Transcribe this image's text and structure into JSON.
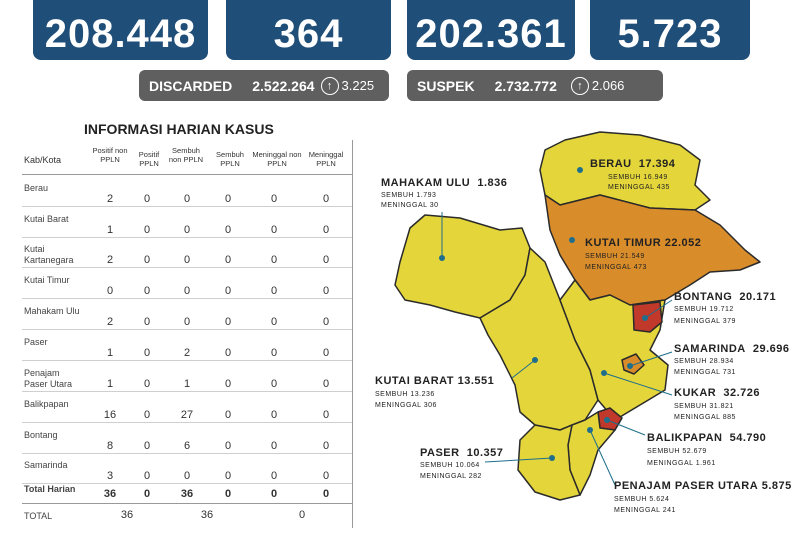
{
  "top_stats": [
    "208.448",
    "364",
    "202.361",
    "5.723"
  ],
  "discarded": {
    "label": "DISCARDED",
    "value": "2.522.264",
    "delta": "3.225"
  },
  "suspek": {
    "label": "SUSPEK",
    "value": "2.732.772",
    "delta": "2.066"
  },
  "table": {
    "title": "INFORMASI HARIAN KASUS",
    "col0": "Kab/Kota",
    "headers": [
      "Positif non PPLN",
      "Positif PPLN",
      "Sembuh non PPLN",
      "Sembuh PPLN",
      "Meninggal non PPLN",
      "Meninggal PPLN"
    ],
    "rows": [
      {
        "name": "Berau",
        "vals": [
          "2",
          "0",
          "0",
          "0",
          "0",
          "0"
        ]
      },
      {
        "name": "Kutai Barat",
        "vals": [
          "1",
          "0",
          "0",
          "0",
          "0",
          "0"
        ]
      },
      {
        "name": "Kutai Kartanegara",
        "vals": [
          "2",
          "0",
          "0",
          "0",
          "0",
          "0"
        ]
      },
      {
        "name": "Kutai Timur",
        "vals": [
          "0",
          "0",
          "0",
          "0",
          "0",
          "0"
        ]
      },
      {
        "name": "Mahakam Ulu",
        "vals": [
          "2",
          "0",
          "0",
          "0",
          "0",
          "0"
        ]
      },
      {
        "name": "Paser",
        "vals": [
          "1",
          "0",
          "2",
          "0",
          "0",
          "0"
        ]
      },
      {
        "name": "Penajam Paser Utara",
        "vals": [
          "1",
          "0",
          "1",
          "0",
          "0",
          "0"
        ]
      },
      {
        "name": "Balikpapan",
        "vals": [
          "16",
          "0",
          "27",
          "0",
          "0",
          "0"
        ]
      },
      {
        "name": "Bontang",
        "vals": [
          "8",
          "0",
          "6",
          "0",
          "0",
          "0"
        ]
      },
      {
        "name": "Samarinda",
        "vals": [
          "3",
          "0",
          "0",
          "0",
          "0",
          "0"
        ]
      }
    ],
    "total_harian": {
      "label": "Total Harian",
      "vals": [
        "36",
        "0",
        "36",
        "0",
        "0",
        "0"
      ]
    },
    "total": {
      "label": "TOTAL",
      "vals": [
        "36",
        "36",
        "0"
      ]
    }
  },
  "map": {
    "colors": {
      "yellow": "#e4d63a",
      "orange": "#d98c2a",
      "red": "#c0392b",
      "border": "#2a2a2a"
    },
    "regions": [
      {
        "name": "BERAU",
        "total": "17.394",
        "sembuh": "SEMBUH 16.949",
        "meninggal": "MENINGGAL 435"
      },
      {
        "name": "MAHAKAM ULU",
        "total": "1.836",
        "sembuh": "SEMBUH 1.793",
        "meninggal": "MENINGGAL 30"
      },
      {
        "name": "KUTAI TIMUR",
        "total": "22.052",
        "sembuh": "SEMBUH 21.549",
        "meninggal": "MENINGGAL 473"
      },
      {
        "name": "BONTANG",
        "total": "20.171",
        "sembuh": "SEMBUH 19.712",
        "meninggal": "MENINGGAL 379"
      },
      {
        "name": "SAMARINDA",
        "total": "29.696",
        "sembuh": "SEMBUH 28.934",
        "meninggal": "MENINGGAL 731"
      },
      {
        "name": "KUTAI BARAT",
        "total": "13.551",
        "sembuh": "SEMBUH 13.236",
        "meninggal": "MENINGGAL 306"
      },
      {
        "name": "KUKAR",
        "total": "32.726",
        "sembuh": "SEMBUH 31.821",
        "meninggal": "MENINGGAL 885"
      },
      {
        "name": "BALIKPAPAN",
        "total": "54.790",
        "sembuh": "SEMBUH 52.679",
        "meninggal": "MENINGGAL 1.961"
      },
      {
        "name": "PASER",
        "total": "10.357",
        "sembuh": "SEMBUH 10.064",
        "meninggal": "MENINGGAL 282"
      },
      {
        "name": "PENAJAM PASER UTARA",
        "total": "5.875",
        "sembuh": "SEMBUH 5.624",
        "meninggal": "MENINGGAL 241"
      }
    ]
  }
}
